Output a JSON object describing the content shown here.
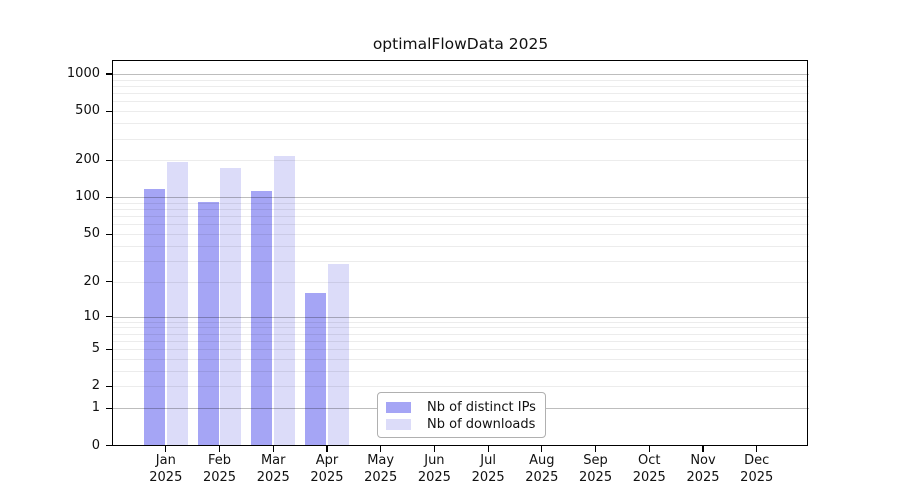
{
  "chart_data": {
    "type": "bar",
    "title": "optimalFlowData 2025",
    "x_categories": [
      {
        "month": "Jan",
        "year": "2025"
      },
      {
        "month": "Feb",
        "year": "2025"
      },
      {
        "month": "Mar",
        "year": "2025"
      },
      {
        "month": "Apr",
        "year": "2025"
      },
      {
        "month": "May",
        "year": "2025"
      },
      {
        "month": "Jun",
        "year": "2025"
      },
      {
        "month": "Jul",
        "year": "2025"
      },
      {
        "month": "Aug",
        "year": "2025"
      },
      {
        "month": "Sep",
        "year": "2025"
      },
      {
        "month": "Oct",
        "year": "2025"
      },
      {
        "month": "Nov",
        "year": "2025"
      },
      {
        "month": "Dec",
        "year": "2025"
      }
    ],
    "series": [
      {
        "name": "Nb of distinct IPs",
        "color": "#a5a5f5",
        "values": [
          117,
          92,
          113,
          16,
          0,
          0,
          0,
          0,
          0,
          0,
          0,
          0
        ]
      },
      {
        "name": "Nb of downloads",
        "color": "#dcdcf9",
        "values": [
          195,
          172,
          215,
          28,
          0,
          0,
          0,
          0,
          0,
          0,
          0,
          0
        ]
      }
    ],
    "y_axis": {
      "scale": "log10(1+x)",
      "ticks": [
        0,
        1,
        2,
        5,
        10,
        20,
        50,
        100,
        200,
        500,
        1000
      ]
    },
    "grid": {
      "minor": [
        2,
        3,
        4,
        5,
        6,
        7,
        8,
        9,
        20,
        30,
        40,
        50,
        60,
        70,
        80,
        90,
        200,
        300,
        400,
        500,
        600,
        700,
        800,
        900
      ],
      "major": [
        1,
        10,
        100,
        1000
      ]
    },
    "legend_position": "bottom-center"
  }
}
